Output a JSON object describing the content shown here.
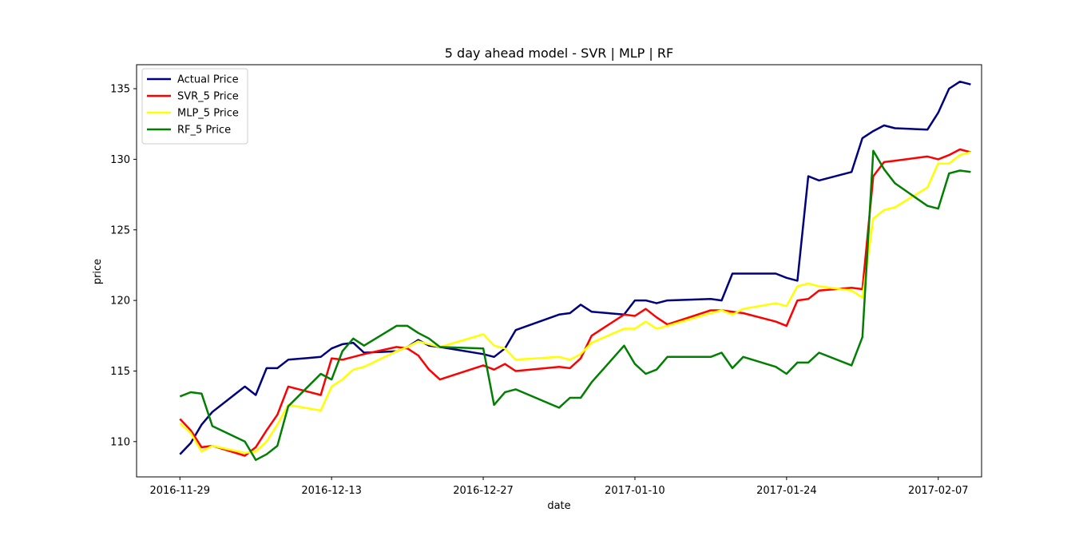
{
  "chart_data": {
    "type": "line",
    "title": "5 day ahead model - SVR | MLP | RF",
    "xlabel": "date",
    "ylabel": "price",
    "x_tick_labels": [
      "2016-11-29",
      "2016-12-13",
      "2016-12-27",
      "2017-01-10",
      "2017-01-24",
      "2017-02-07"
    ],
    "y_ticks": [
      110,
      115,
      120,
      125,
      130,
      135
    ],
    "xlim": [
      "2016-11-25",
      "2017-02-11"
    ],
    "ylim": [
      107.5,
      136.7
    ],
    "grid": false,
    "legend_position": "top-left",
    "x": [
      "2016-11-29",
      "2016-11-30",
      "2016-12-01",
      "2016-12-02",
      "2016-12-05",
      "2016-12-06",
      "2016-12-07",
      "2016-12-08",
      "2016-12-09",
      "2016-12-12",
      "2016-12-13",
      "2016-12-14",
      "2016-12-15",
      "2016-12-16",
      "2016-12-19",
      "2016-12-20",
      "2016-12-21",
      "2016-12-22",
      "2016-12-23",
      "2016-12-27",
      "2016-12-28",
      "2016-12-29",
      "2016-12-30",
      "2017-01-03",
      "2017-01-04",
      "2017-01-05",
      "2017-01-06",
      "2017-01-09",
      "2017-01-10",
      "2017-01-11",
      "2017-01-12",
      "2017-01-13",
      "2017-01-17",
      "2017-01-18",
      "2017-01-19",
      "2017-01-20",
      "2017-01-23",
      "2017-01-24",
      "2017-01-25",
      "2017-01-26",
      "2017-01-27",
      "2017-01-30",
      "2017-01-31",
      "2017-02-01",
      "2017-02-02",
      "2017-02-03",
      "2017-02-06",
      "2017-02-07",
      "2017-02-08",
      "2017-02-09",
      "2017-02-10"
    ],
    "series": [
      {
        "name": "Actual Price",
        "color": "#00007f",
        "values": [
          109.1,
          109.9,
          111.2,
          112.1,
          113.9,
          113.3,
          115.2,
          115.2,
          115.8,
          116.0,
          116.6,
          116.9,
          117.0,
          116.3,
          116.4,
          116.7,
          117.2,
          116.8,
          116.7,
          116.2,
          116.0,
          116.6,
          117.9,
          119.0,
          119.1,
          119.7,
          119.2,
          119.0,
          120.0,
          120.0,
          119.8,
          120.0,
          120.1,
          120.0,
          121.9,
          121.9,
          121.9,
          121.6,
          121.4,
          128.8,
          128.5,
          129.1,
          131.5,
          132.0,
          132.4,
          132.2,
          132.1,
          133.3,
          135.0,
          135.5,
          135.3
        ]
      },
      {
        "name": "SVR_5 Price",
        "color": "#ff0000",
        "values": [
          111.6,
          110.8,
          109.6,
          109.7,
          109.0,
          109.6,
          110.8,
          111.9,
          113.9,
          113.3,
          115.9,
          115.8,
          116.0,
          116.2,
          116.7,
          116.6,
          116.1,
          115.1,
          114.4,
          115.4,
          115.1,
          115.5,
          115.0,
          115.3,
          115.2,
          115.9,
          117.5,
          119.0,
          118.9,
          119.4,
          118.8,
          118.3,
          119.3,
          119.3,
          119.2,
          119.1,
          118.5,
          118.2,
          120.0,
          120.1,
          120.7,
          120.9,
          120.8,
          128.8,
          129.8,
          129.9,
          130.2,
          130.0,
          130.3,
          130.7,
          130.5
        ]
      },
      {
        "name": "MLP_5 Price",
        "color": "#ffff00",
        "values": [
          111.3,
          110.6,
          109.3,
          109.7,
          109.2,
          109.3,
          110.0,
          111.2,
          112.6,
          112.2,
          113.9,
          114.4,
          115.1,
          115.3,
          116.4,
          116.7,
          117.1,
          116.9,
          116.7,
          117.6,
          116.8,
          116.6,
          115.8,
          116.0,
          115.8,
          116.2,
          117.0,
          118.0,
          118.0,
          118.5,
          118.0,
          118.2,
          119.1,
          119.3,
          119.0,
          119.4,
          119.8,
          119.6,
          121.0,
          121.2,
          121.0,
          120.7,
          120.2,
          125.8,
          126.4,
          126.6,
          128.0,
          129.7,
          129.7,
          130.3,
          130.5
        ]
      },
      {
        "name": "RF_5 Price",
        "color": "#007f00",
        "values": [
          113.2,
          113.5,
          113.4,
          111.1,
          110.0,
          108.7,
          109.1,
          109.7,
          112.5,
          114.8,
          114.4,
          116.4,
          117.3,
          116.8,
          118.2,
          118.2,
          117.7,
          117.3,
          116.7,
          116.6,
          112.6,
          113.5,
          113.7,
          112.4,
          113.1,
          113.1,
          114.2,
          116.8,
          115.5,
          114.8,
          115.1,
          116.0,
          116.0,
          116.3,
          115.2,
          116.0,
          115.3,
          114.8,
          115.6,
          115.6,
          116.3,
          115.4,
          117.4,
          130.6,
          129.3,
          128.3,
          126.7,
          126.5,
          129.0,
          129.2,
          129.1
        ]
      }
    ]
  }
}
